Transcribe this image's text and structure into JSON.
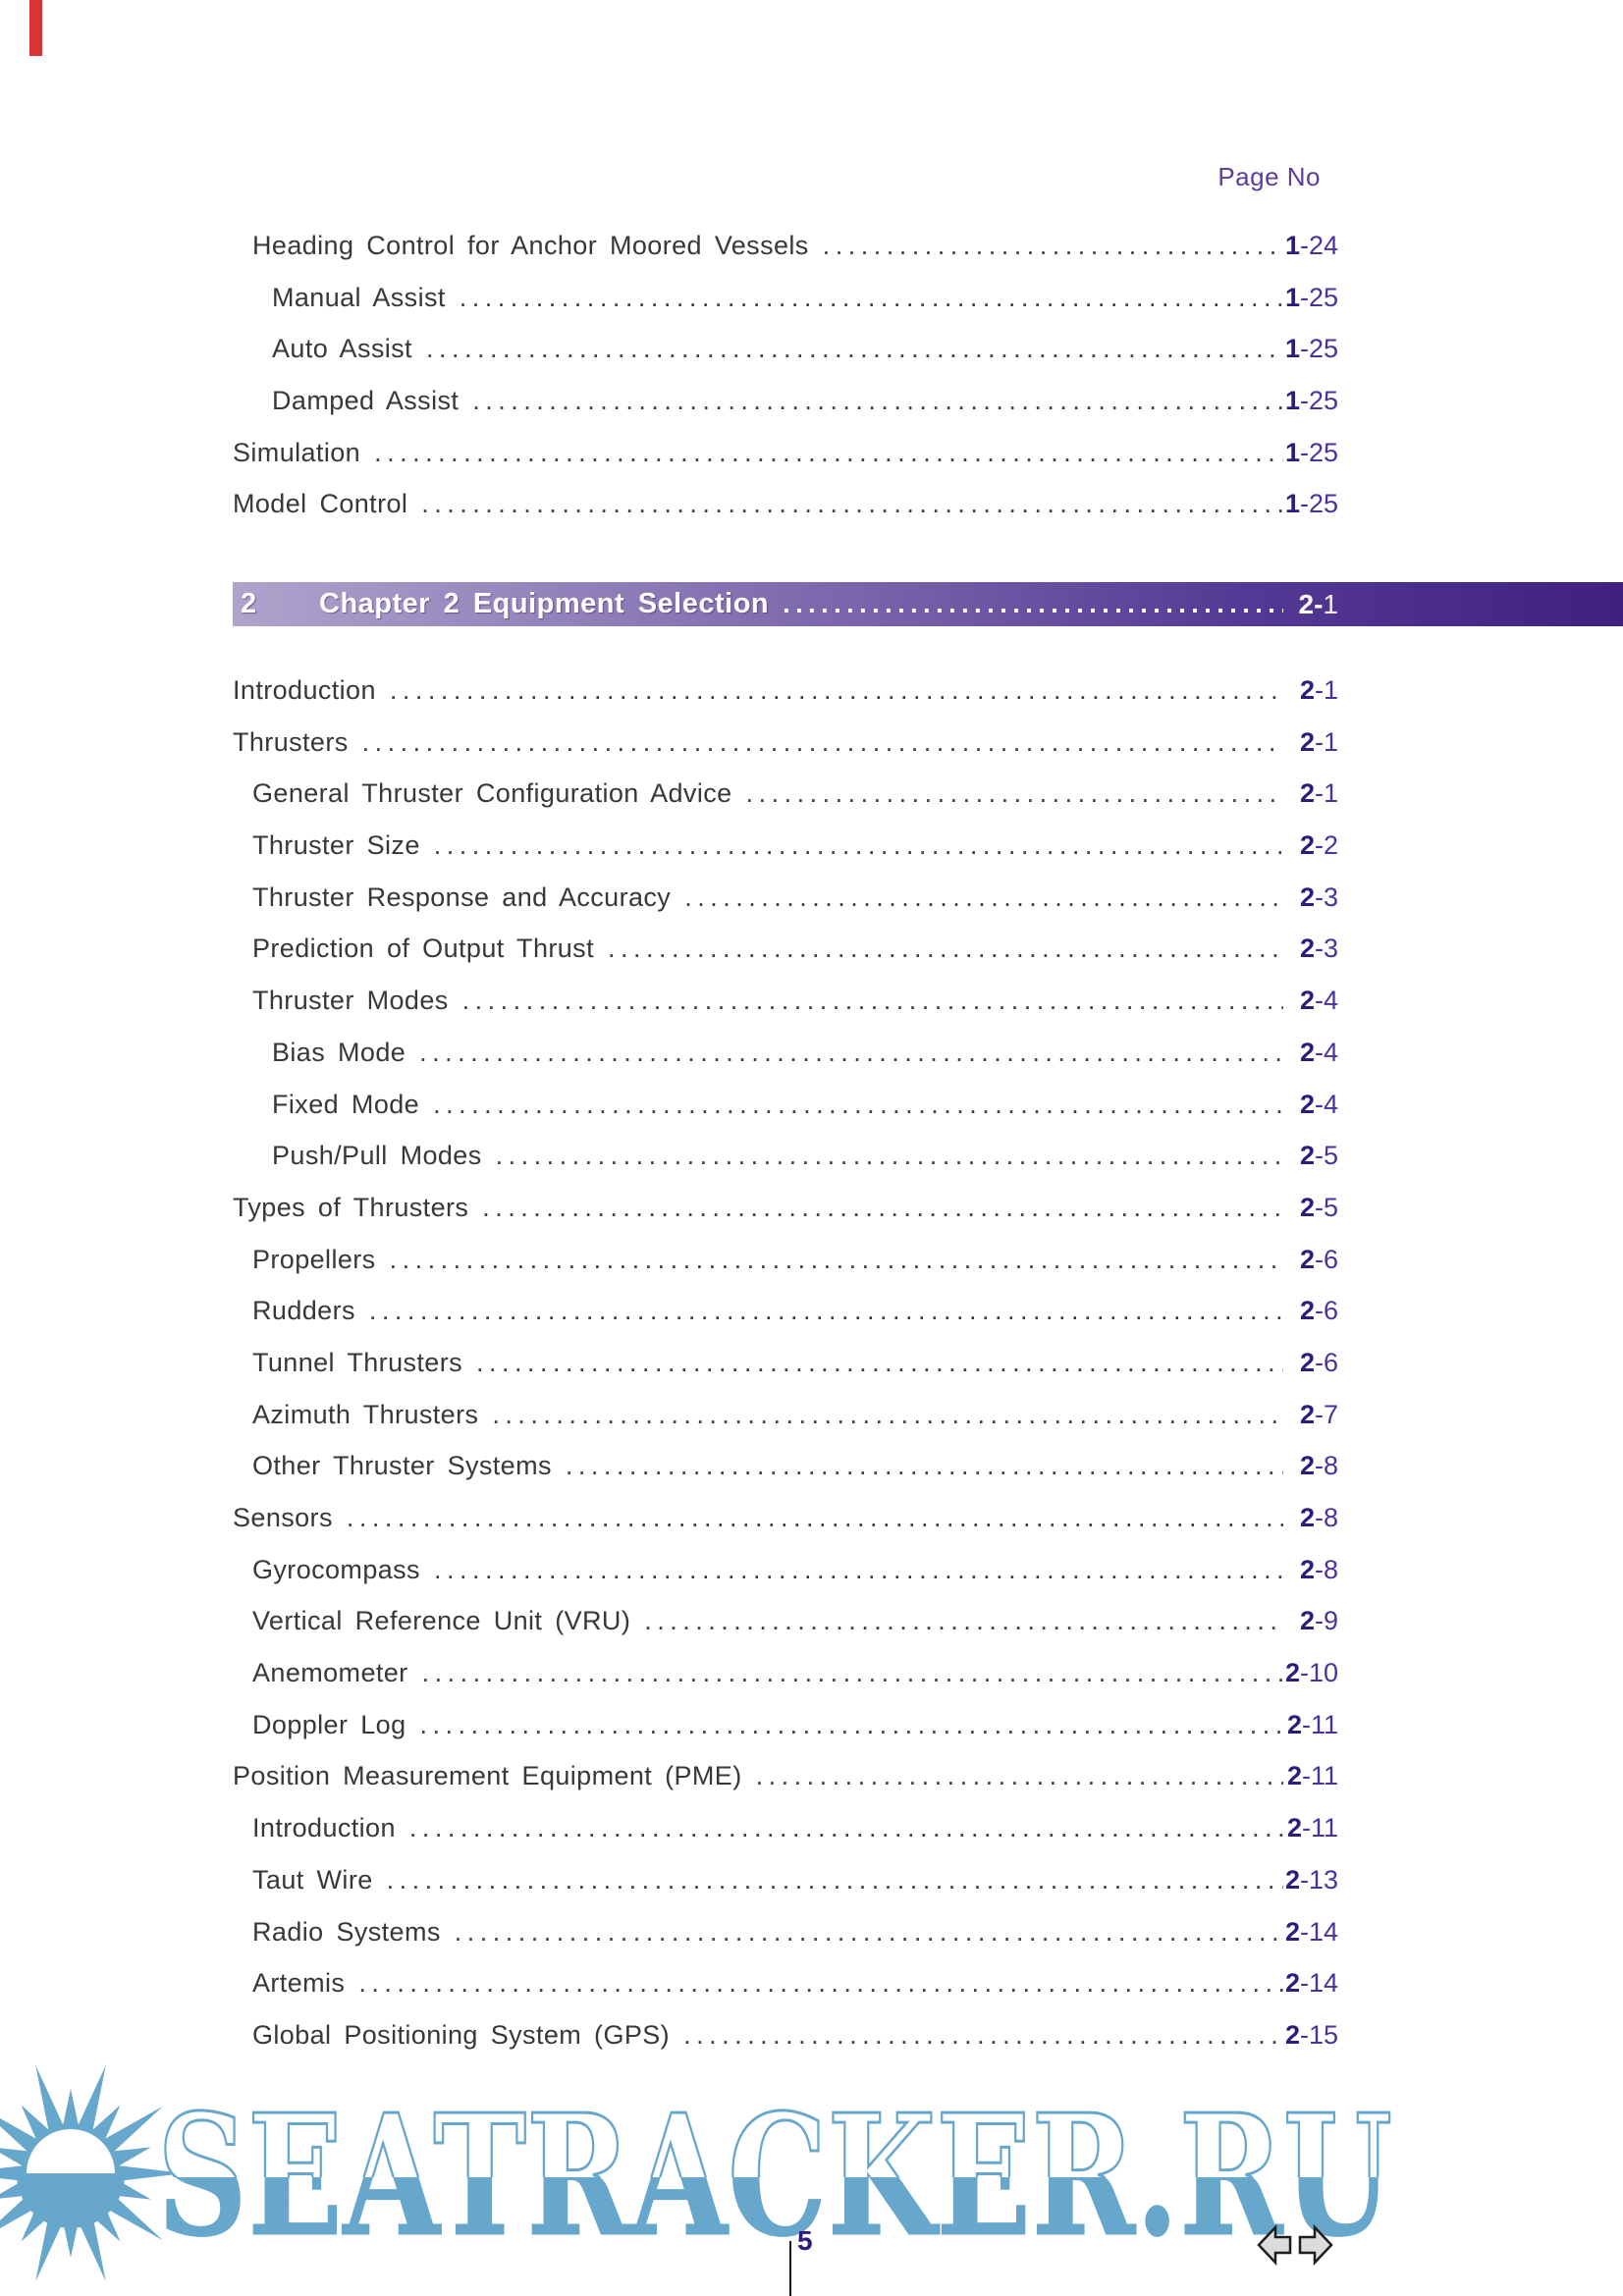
{
  "page": {
    "page_no_label": "Page No",
    "footer_page_number": "5"
  },
  "colors": {
    "ref_chapter_purple": "#2e1b7e",
    "ref_page_purple": "#4c309c",
    "page_no_purple": "#5c3c9e",
    "banner_gradient_left": "#b0a3cd",
    "banner_gradient_right": "#402080",
    "watermark_blue": "#68a7cc",
    "body_text": "#383838",
    "red_mark": "#d93434"
  },
  "toc": {
    "block1": [
      {
        "label": "Heading Control for Anchor Moored Vessels",
        "level": 1,
        "ref_chapter": "1",
        "ref_page": "-24"
      },
      {
        "label": "Manual Assist",
        "level": 2,
        "ref_chapter": "1",
        "ref_page": "-25"
      },
      {
        "label": "Auto Assist",
        "level": 2,
        "ref_chapter": "1",
        "ref_page": "-25"
      },
      {
        "label": "Damped Assist",
        "level": 2,
        "ref_chapter": "1",
        "ref_page": "-25"
      },
      {
        "label": "Simulation",
        "level": 0,
        "ref_chapter": "1",
        "ref_page": "-25"
      },
      {
        "label": "Model Control",
        "level": 0,
        "ref_chapter": "1",
        "ref_page": "-25"
      }
    ],
    "chapter_banner": {
      "number": "2",
      "title": "Chapter 2 Equipment Selection",
      "ref_chapter": "2-",
      "ref_page": "1"
    },
    "block2": [
      {
        "label": "Introduction",
        "level": 0,
        "ref_chapter": "2",
        "ref_page": "-1"
      },
      {
        "label": "Thrusters",
        "level": 0,
        "ref_chapter": "2",
        "ref_page": "-1"
      },
      {
        "label": "General Thruster Configuration Advice",
        "level": 1,
        "ref_chapter": "2",
        "ref_page": "-1"
      },
      {
        "label": "Thruster Size",
        "level": 1,
        "ref_chapter": "2",
        "ref_page": "-2"
      },
      {
        "label": "Thruster Response and Accuracy",
        "level": 1,
        "ref_chapter": "2",
        "ref_page": "-3"
      },
      {
        "label": "Prediction of Output Thrust",
        "level": 1,
        "ref_chapter": "2",
        "ref_page": "-3"
      },
      {
        "label": "Thruster Modes",
        "level": 1,
        "ref_chapter": "2",
        "ref_page": "-4"
      },
      {
        "label": "Bias Mode",
        "level": 2,
        "ref_chapter": "2",
        "ref_page": "-4"
      },
      {
        "label": "Fixed Mode",
        "level": 2,
        "ref_chapter": "2",
        "ref_page": "-4"
      },
      {
        "label": "Push/Pull Modes",
        "level": 2,
        "ref_chapter": "2",
        "ref_page": "-5"
      },
      {
        "label": "Types of Thrusters",
        "level": 0,
        "ref_chapter": "2",
        "ref_page": "-5"
      },
      {
        "label": "Propellers",
        "level": 1,
        "ref_chapter": "2",
        "ref_page": "-6"
      },
      {
        "label": "Rudders",
        "level": 1,
        "ref_chapter": "2",
        "ref_page": "-6"
      },
      {
        "label": "Tunnel Thrusters",
        "level": 1,
        "ref_chapter": "2",
        "ref_page": "-6"
      },
      {
        "label": "Azimuth Thrusters",
        "level": 1,
        "ref_chapter": "2",
        "ref_page": "-7"
      },
      {
        "label": "Other Thruster Systems",
        "level": 1,
        "ref_chapter": "2",
        "ref_page": "-8"
      },
      {
        "label": "Sensors",
        "level": 0,
        "ref_chapter": "2",
        "ref_page": "-8"
      },
      {
        "label": "Gyrocompass",
        "level": 1,
        "ref_chapter": "2",
        "ref_page": "-8"
      },
      {
        "label": "Vertical Reference Unit (VRU)",
        "level": 1,
        "ref_chapter": "2",
        "ref_page": "-9"
      },
      {
        "label": "Anemometer",
        "level": 1,
        "ref_chapter": "2",
        "ref_page": "-10"
      },
      {
        "label": "Doppler Log",
        "level": 1,
        "ref_chapter": "2",
        "ref_page": "-11"
      },
      {
        "label": "Position Measurement Equipment (PME)",
        "level": 0,
        "ref_chapter": "2",
        "ref_page": "-11"
      },
      {
        "label": "Introduction",
        "level": 1,
        "ref_chapter": "2",
        "ref_page": "-11"
      },
      {
        "label": "Taut Wire",
        "level": 1,
        "ref_chapter": "2",
        "ref_page": "-13"
      },
      {
        "label": "Radio Systems",
        "level": 1,
        "ref_chapter": "2",
        "ref_page": "-14"
      },
      {
        "label": "Artemis",
        "level": 1,
        "ref_chapter": "2",
        "ref_page": "-14"
      },
      {
        "label": "Global Positioning System (GPS)",
        "level": 1,
        "ref_chapter": "2",
        "ref_page": "-15"
      }
    ]
  },
  "watermark": {
    "text": "SEATRACKER.RU",
    "sun_icon": "sun-icon"
  },
  "nav": {
    "back_icon": "arrow-left-icon",
    "forward_icon": "arrow-right-icon"
  }
}
